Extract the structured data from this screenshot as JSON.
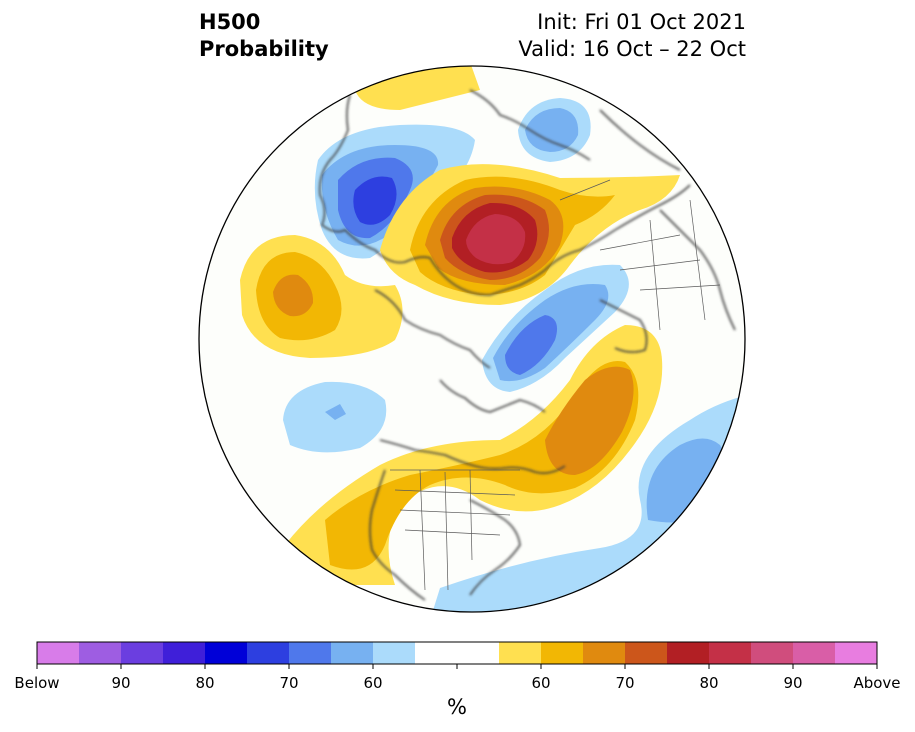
{
  "header": {
    "title_line1": "H500",
    "title_line2": "Probability",
    "init_text": "Init: Fri 01 Oct 2021",
    "valid_text": "Valid: 16 Oct – 22 Oct"
  },
  "colorbar": {
    "unit": "%",
    "tick_labels": [
      "Below",
      "90",
      "80",
      "70",
      "60",
      "60",
      "70",
      "80",
      "90",
      "Above"
    ],
    "colors": [
      "#d87ce9",
      "#9e5de2",
      "#6b3ee0",
      "#3f1fd9",
      "#0000d8",
      "#2d3fe0",
      "#4f78eb",
      "#77b1f1",
      "#abdbfb",
      "#ffffff",
      "#ffffff",
      "#ffe050",
      "#f2b704",
      "#e08a0f",
      "#cc561b",
      "#b21f24",
      "#c43047",
      "#d04d7d",
      "#d95ea7",
      "#e87de0"
    ]
  },
  "map_colors": {
    "above_60": "#ffe050",
    "above_65": "#f2b704",
    "above_70": "#e08a0f",
    "above_75": "#cc561b",
    "above_80": "#b21f24",
    "above_85": "#c43047",
    "below_60": "#abdbfb",
    "below_65": "#77b1f1",
    "below_70": "#4f78eb",
    "below_75": "#2d3fe0",
    "background": "#fdfefb",
    "coastline": "#3c3c3c"
  }
}
